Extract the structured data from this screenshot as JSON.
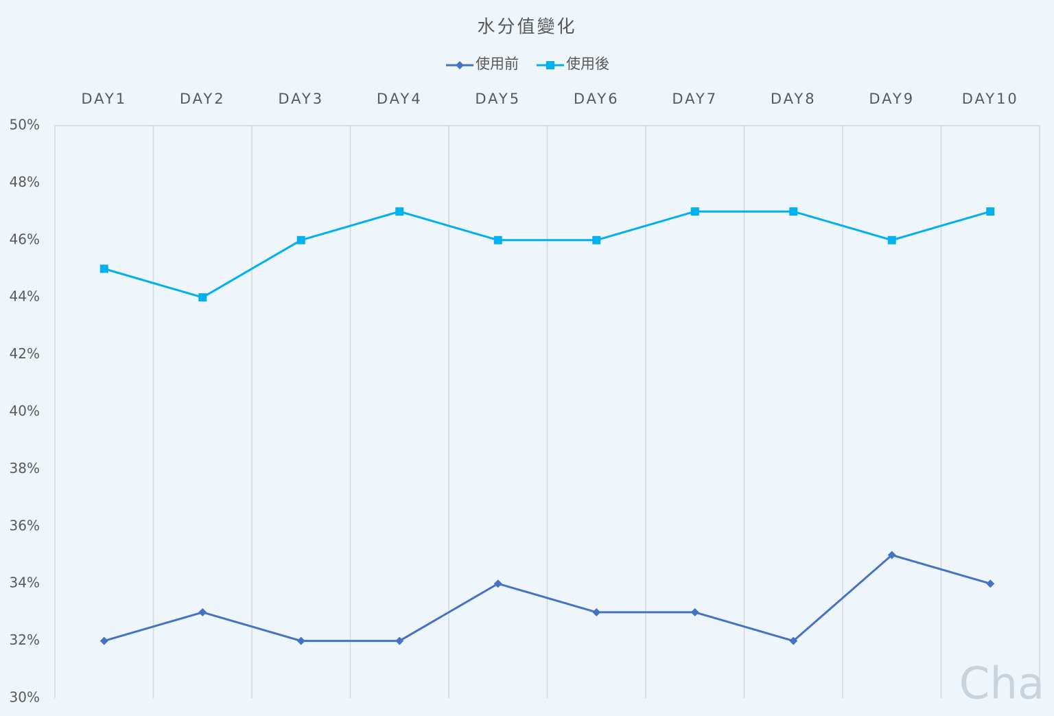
{
  "chart_data": {
    "type": "line",
    "title": "水分值變化",
    "categories": [
      "DAY1",
      "DAY2",
      "DAY3",
      "DAY4",
      "DAY5",
      "DAY6",
      "DAY7",
      "DAY8",
      "DAY9",
      "DAY10"
    ],
    "series": [
      {
        "name": "使用前",
        "color": "#4472c4",
        "marker": "diamond",
        "values": [
          32,
          33,
          32,
          32,
          34,
          33,
          33,
          32,
          35,
          34
        ]
      },
      {
        "name": "使用後",
        "color": "#00b0f0",
        "marker": "square",
        "values": [
          45,
          44,
          46,
          47,
          46,
          46,
          47,
          47,
          46,
          47
        ]
      }
    ],
    "ylim": [
      30,
      50
    ],
    "yticks": [
      {
        "value": 30,
        "label": "30%"
      },
      {
        "value": 32,
        "label": "32%"
      },
      {
        "value": 34,
        "label": "34%"
      },
      {
        "value": 36,
        "label": "36%"
      },
      {
        "value": 38,
        "label": "38%"
      },
      {
        "value": 40,
        "label": "40%"
      },
      {
        "value": 42,
        "label": "42%"
      },
      {
        "value": 44,
        "label": "44%"
      },
      {
        "value": 46,
        "label": "46%"
      },
      {
        "value": 48,
        "label": "48%"
      },
      {
        "value": 50,
        "label": "50%"
      }
    ],
    "legend": "top",
    "watermark": "Cha"
  }
}
